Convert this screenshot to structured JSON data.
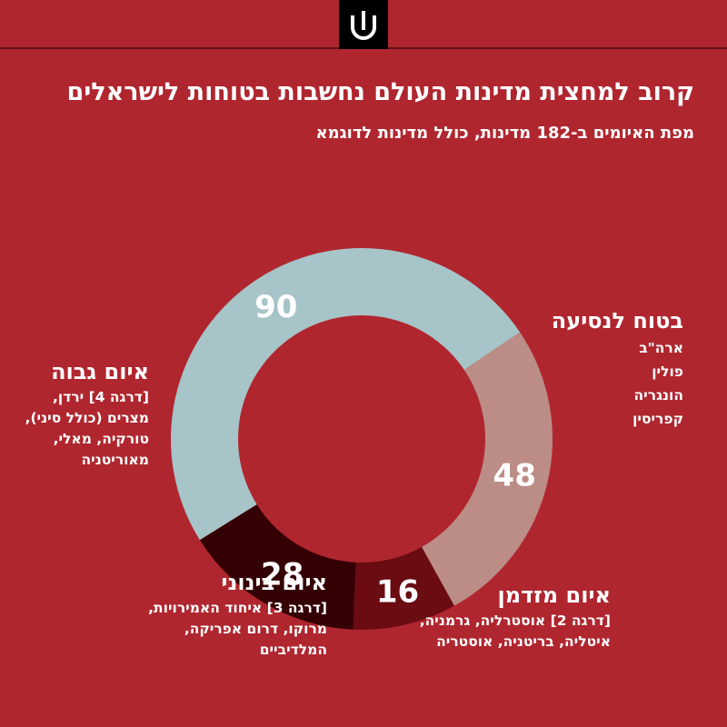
{
  "header": {
    "title": "קרוב למחצית מדינות העולם נחשבות בטוחות לישראלים",
    "subtitle": "מפת האיומים ב-182 מדינות, כולל מדינות לדוגמא",
    "logo_icon": "shin-logo-icon"
  },
  "chart_data": {
    "type": "pie",
    "donut": true,
    "title": "קרוב למחצית מדינות העולם נחשבות בטוחות לישראלים",
    "subtitle": "מפת האיומים ב-182 מדינות, כולל מדינות לדוגמא",
    "total": 182,
    "slices": [
      {
        "key": "safe",
        "label": "בטוח לנסיעה",
        "value": 90,
        "color": "#a7c4c8",
        "text_color": "#ffffff"
      },
      {
        "key": "moderate",
        "label": "איום מזדמן",
        "value": 48,
        "color": "#bb8d86",
        "text_color": "#ffffff"
      },
      {
        "key": "medium",
        "label": "איום בינוני",
        "value": 16,
        "color": "#6a0c12",
        "text_color": "#ffffff"
      },
      {
        "key": "high",
        "label": "איום גבוה",
        "value": 28,
        "color": "#350004",
        "text_color": "#ffffff"
      }
    ]
  },
  "legend": {
    "safe": {
      "heading": "בטוח לנסיעה",
      "text": "ארה\"ב\nפולין\nהונגריה\nקפריסין"
    },
    "high": {
      "heading": "איום גבוה",
      "text": "[דרגה 4] ירדן,\nמצרים (כולל סיני),\nטורקיה, מאלי,\nמאוריטניה"
    },
    "moderate": {
      "heading": "איום מזדמן",
      "text": "[דרגה 2] אוסטרליה, גרמניה,\nאיטליה, בריטניה, אוסטריה"
    },
    "medium": {
      "heading": "איום בינוני",
      "text": "[דרגה 3] איחוד האמירויות,\nמרוקו, דרום אפריקה,\nהמלדיביים"
    }
  },
  "colors": {
    "background": "#b0262f",
    "text": "#ffffff"
  }
}
